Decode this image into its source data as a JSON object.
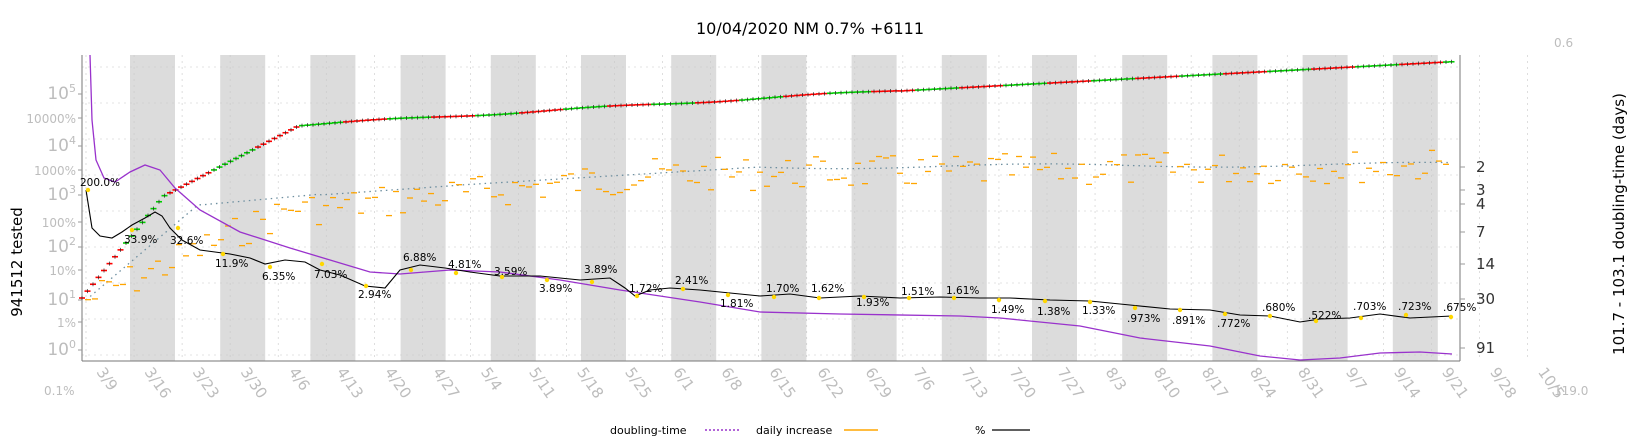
{
  "chart_data": {
    "type": "line",
    "title": "10/04/2020 NM 0.7% +6111",
    "left_axis_label": "941512 tested",
    "right_axis_label": "101.7 - 103.1 doubling-time (days)",
    "left_ticks": [
      {
        "label": "10^0"
      },
      {
        "label": "1%"
      },
      {
        "label": "10^1"
      },
      {
        "label": "10%"
      },
      {
        "label": "10^2"
      },
      {
        "label": "100%"
      },
      {
        "label": "10^3"
      },
      {
        "label": "1000%"
      },
      {
        "label": "10^4"
      },
      {
        "label": "10000%"
      },
      {
        "label": "10^5"
      }
    ],
    "left_corner_label": "0.1%",
    "right_ticks": [
      "2",
      "3",
      "4",
      "7",
      "14",
      "30",
      "91"
    ],
    "right_top_label": "0.6",
    "right_bottom_label": "119.0",
    "x_dates": [
      "3/9",
      "3/16",
      "3/23",
      "3/30",
      "4/6",
      "4/13",
      "4/20",
      "4/27",
      "5/4",
      "5/11",
      "5/18",
      "5/25",
      "6/1",
      "6/8",
      "6/15",
      "6/22",
      "6/29",
      "7/6",
      "7/13",
      "7/20",
      "7/27",
      "8/3",
      "8/10",
      "8/17",
      "8/24",
      "8/31",
      "9/7",
      "9/14",
      "9/21",
      "9/28",
      "10/5"
    ],
    "percent_labels": [
      "200.0%",
      "33.9%",
      "32.6%",
      "11.9%",
      "6.35%",
      "7.03%",
      "2.94%",
      "6.88%",
      "4.81%",
      "3.59%",
      "3.89%",
      "3.89%",
      "1.72%",
      "2.41%",
      "1.81%",
      "1.70%",
      "1.62%",
      "1.93%",
      "1.51%",
      "1.61%",
      "1.49%",
      "1.38%",
      "1.33%",
      ".973%",
      ".891%",
      ".772%",
      ".680%",
      ".522%",
      ".703%",
      ".723%",
      ".675%"
    ],
    "series": [
      {
        "name": "doubling-time",
        "color": "#9932CC"
      },
      {
        "name": "daily increase",
        "color": "#FFA500"
      },
      {
        "name": "%",
        "color": "#000000"
      }
    ],
    "tested_color": "#6E8FA0",
    "cumulative_colors": [
      "#FF0000",
      "#00CC00"
    ],
    "legend_placement": "bottom",
    "grid": true
  }
}
